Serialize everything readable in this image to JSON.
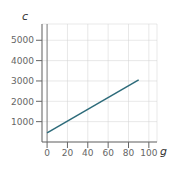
{
  "chart_data": {
    "type": "line",
    "x": [
      0,
      90
    ],
    "values": [
      450,
      3050
    ],
    "color": "#2d6b7a",
    "xlabel": "g",
    "ylabel": "c",
    "xlim": [
      -5,
      108
    ],
    "ylim": [
      0,
      5800
    ],
    "xticks": [
      0,
      20,
      40,
      60,
      80,
      100
    ],
    "yticks": [
      1000,
      2000,
      3000,
      4000,
      5000
    ],
    "grid": true
  }
}
